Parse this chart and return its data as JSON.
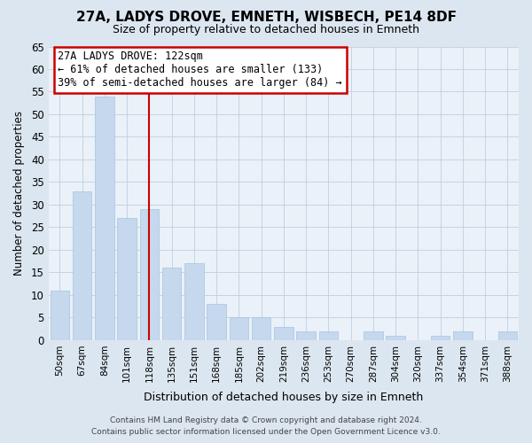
{
  "title": "27A, LADYS DROVE, EMNETH, WISBECH, PE14 8DF",
  "subtitle": "Size of property relative to detached houses in Emneth",
  "xlabel": "Distribution of detached houses by size in Emneth",
  "ylabel": "Number of detached properties",
  "bar_labels": [
    "50sqm",
    "67sqm",
    "84sqm",
    "101sqm",
    "118sqm",
    "135sqm",
    "151sqm",
    "168sqm",
    "185sqm",
    "202sqm",
    "219sqm",
    "236sqm",
    "253sqm",
    "270sqm",
    "287sqm",
    "304sqm",
    "320sqm",
    "337sqm",
    "354sqm",
    "371sqm",
    "388sqm"
  ],
  "bar_values": [
    11,
    33,
    54,
    27,
    29,
    16,
    17,
    8,
    5,
    5,
    3,
    2,
    2,
    0,
    2,
    1,
    0,
    1,
    2,
    0,
    2
  ],
  "bar_color": "#c5d8ee",
  "bar_edge_color": "#a8c4e0",
  "red_line_index": 4,
  "ylim": [
    0,
    65
  ],
  "yticks": [
    0,
    5,
    10,
    15,
    20,
    25,
    30,
    35,
    40,
    45,
    50,
    55,
    60,
    65
  ],
  "annotation_title": "27A LADYS DROVE: 122sqm",
  "annotation_line1": "← 61% of detached houses are smaller (133)",
  "annotation_line2": "39% of semi-detached houses are larger (84) →",
  "footer_line1": "Contains HM Land Registry data © Crown copyright and database right 2024.",
  "footer_line2": "Contains public sector information licensed under the Open Government Licence v3.0.",
  "background_color": "#dce6f0",
  "plot_bg_color": "#eaf1f8",
  "grid_color": "#c0cfe0",
  "title_fontsize": 11,
  "subtitle_fontsize": 9,
  "annotation_box_facecolor": "#ffffff",
  "annotation_box_edgecolor": "#cc0000",
  "footer_color": "#444444"
}
